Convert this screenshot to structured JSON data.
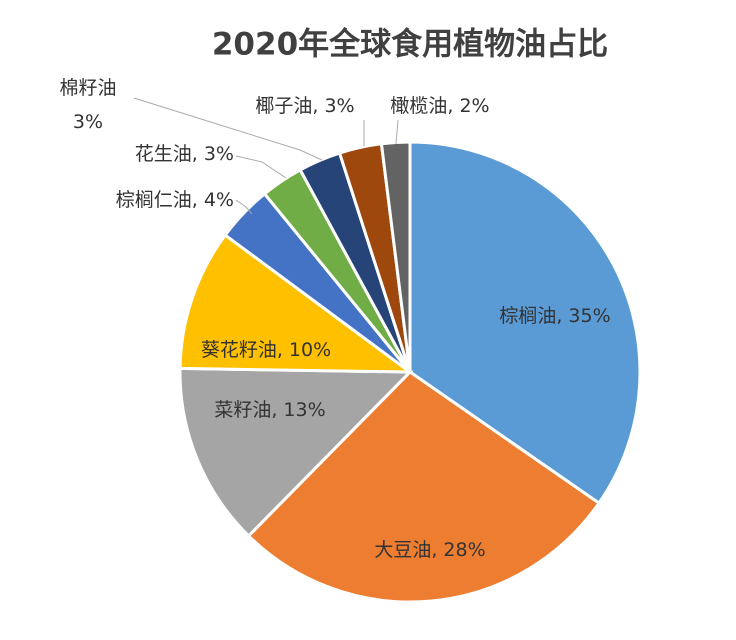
{
  "chart_data": {
    "type": "pie",
    "title": "2020年全球食用植物油占比",
    "categories": [
      "棕榈油",
      "大豆油",
      "菜籽油",
      "葵花籽油",
      "棕榈仁油",
      "花生油",
      "棉籽油",
      "椰子油",
      "橄榄油"
    ],
    "values": [
      35,
      28,
      13,
      10,
      4,
      3,
      3,
      3,
      2
    ],
    "value_labels": [
      ", 35%",
      ", 28%",
      ", 13%",
      ", 10%",
      ", 4%",
      ", 3%",
      "3%",
      ", 3%",
      ", 2%"
    ],
    "colors": [
      "#5b9bd5",
      "#ed7d31",
      "#a5a5a5",
      "#ffc000",
      "#4472c4",
      "#70ad47",
      "#264478",
      "#9e480e",
      "#636363"
    ]
  }
}
